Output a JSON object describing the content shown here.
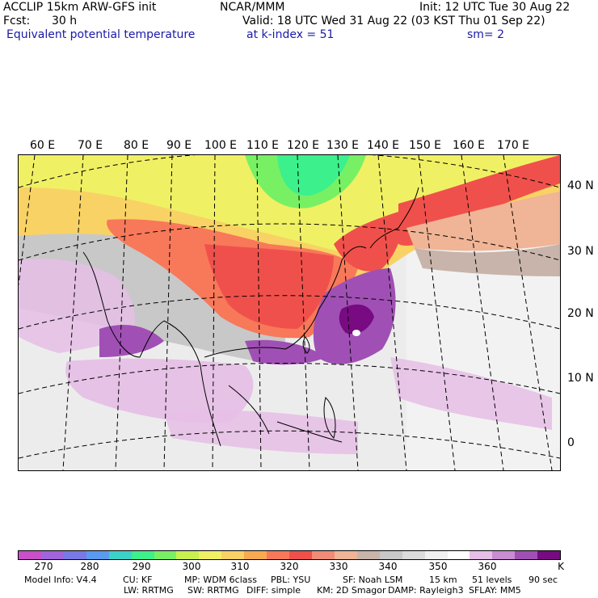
{
  "header": {
    "model": "ACCLIP 15km ARW-GFS init",
    "org": "NCAR/MMM",
    "init": "Init: 12 UTC Tue 30 Aug 22",
    "fcst_label": "Fcst:",
    "fcst_value": "30 h",
    "valid": "Valid: 18 UTC Wed 31 Aug 22 (03 KST Thu 01 Sep 22)",
    "field": "Equivalent potential temperature",
    "level": "at k-index =  51",
    "smooth": "sm= 2"
  },
  "map": {
    "lon_labels": [
      "60 E",
      "70 E",
      "80 E",
      "90 E",
      "100 E",
      "110 E",
      "120 E",
      "130 E",
      "140 E",
      "150 E",
      "160 E",
      "170 E"
    ],
    "lat_labels": [
      "40 N",
      "30 N",
      "20 N",
      "10 N",
      "0"
    ]
  },
  "colorbar": {
    "unit": "K",
    "labels": [
      "270",
      "280",
      "290",
      "300",
      "310",
      "320",
      "330",
      "340",
      "350",
      "360"
    ],
    "colors": [
      "#c850c8",
      "#a064dc",
      "#7878e6",
      "#5a9bf0",
      "#3cd2c8",
      "#3cf08c",
      "#78f064",
      "#c8f050",
      "#f0f064",
      "#f8d264",
      "#f8aa50",
      "#f8785a",
      "#f0504b",
      "#f08c78",
      "#f0b496",
      "#c8b4aa",
      "#c8c8c8",
      "#dcdcdc",
      "#f0f0f0",
      "#ffffff",
      "#e6bee6",
      "#c88cd2",
      "#a050b4",
      "#780a82"
    ]
  },
  "footer": {
    "row1": [
      "Model Info: V4.4",
      "CU: KF",
      "MP: WDM 6class",
      "PBL: YSU",
      "SF: Noah LSM",
      "15 km",
      "51 levels",
      "90 sec"
    ],
    "row2": [
      "LW: RRTMG",
      "SW: RRTMG",
      "DIFF: simple",
      "KM: 2D Smagor",
      "DAMP: Rayleigh3",
      "SFLAY: MM5"
    ]
  }
}
